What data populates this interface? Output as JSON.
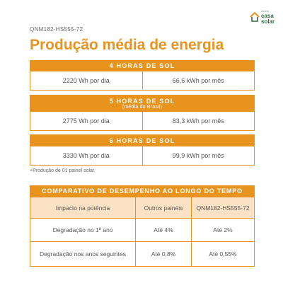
{
  "header": {
    "model": "QNM182-HS555-72",
    "logo": [
      "minha",
      "casa",
      "solar"
    ],
    "title": "Produção média de energia"
  },
  "blocks": [
    {
      "title": "4 HORAS DE SOL",
      "daily": "2220 Wh por dia",
      "monthly": "66,6 kWh por mês"
    },
    {
      "title": "5 HORAS DE SOL",
      "subtitle": "(média do Brasil)",
      "daily": "2775 Wh por dia",
      "monthly": "83,3 kWh por mês"
    },
    {
      "title": "6 HORAS DE SOL",
      "daily": "3330 Wh por dia",
      "monthly": "99,9 kWh por mês"
    }
  ],
  "note": "+Produção de 01 painel solar.",
  "table": {
    "title": "COMPARATIVO DE DESEMPENHO AO LONGO DO TEMPO",
    "columns": [
      "Impacto na potência",
      "Outros painéis",
      "QNM182-HS555-72"
    ],
    "rows": [
      [
        "Degradação no 1º ano",
        "Até 4%",
        "Até 2%"
      ],
      [
        "Degradação nos anos seguintes",
        "Até 0,8%",
        "Até 0,55%"
      ]
    ]
  }
}
